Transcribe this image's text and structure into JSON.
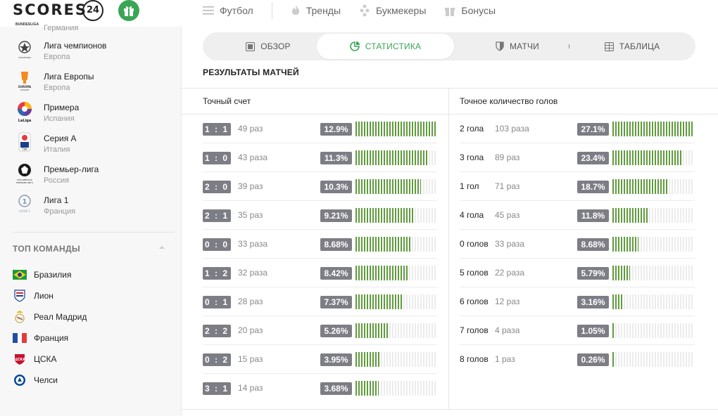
{
  "header": {
    "logo_text": "SCORES",
    "logo_number": "24",
    "nav": [
      {
        "label": "Футбол",
        "icon": "menu-icon"
      },
      {
        "label": "Тренды",
        "icon": "flame-icon"
      },
      {
        "label": "Букмекеры",
        "icon": "bookmaker-icon"
      },
      {
        "label": "Бонусы",
        "icon": "gift-icon"
      }
    ]
  },
  "sidebar": {
    "partial_top_country": "Германия",
    "leagues": [
      {
        "name": "Лига чемпионов",
        "country": "Европа",
        "icon": "champions-league-icon"
      },
      {
        "name": "Лига Европы",
        "country": "Европа",
        "icon": "europa-league-icon"
      },
      {
        "name": "Примера",
        "country": "Испания",
        "icon": "laliga-icon"
      },
      {
        "name": "Серия А",
        "country": "Италия",
        "icon": "serie-a-icon"
      },
      {
        "name": "Премьер-лига",
        "country": "Россия",
        "icon": "russian-premier-league-icon"
      },
      {
        "name": "Лига 1",
        "country": "Франция",
        "icon": "ligue-1-icon"
      }
    ],
    "top_teams_title": "ТОП КОМАНДЫ",
    "teams": [
      {
        "name": "Бразилия",
        "icon": "brazil-flag-icon"
      },
      {
        "name": "Лион",
        "icon": "lyon-crest-icon"
      },
      {
        "name": "Реал Мадрид",
        "icon": "real-madrid-crest-icon"
      },
      {
        "name": "Франция",
        "icon": "france-flag-icon"
      },
      {
        "name": "ЦСКА",
        "icon": "cska-crest-icon"
      },
      {
        "name": "Челси",
        "icon": "chelsea-crest-icon"
      }
    ]
  },
  "tabs": [
    {
      "label": "Обзор",
      "icon": "overview-icon",
      "active": false
    },
    {
      "label": "Статистика",
      "icon": "pie-chart-icon",
      "active": true
    },
    {
      "label": "Матчи",
      "icon": "shield-icon",
      "active": false
    },
    {
      "label": "Таблица",
      "icon": "table-icon",
      "active": false
    }
  ],
  "section_title": "РЕЗУЛЬТАТЫ МАТЧЕЙ",
  "exact_score": {
    "title": "Точный счет",
    "rows": [
      {
        "score": "1 : 1",
        "count": "49 раз",
        "pct": "12.9%",
        "value": 12.9
      },
      {
        "score": "1 : 0",
        "count": "43 раза",
        "pct": "11.3%",
        "value": 11.3
      },
      {
        "score": "2 : 0",
        "count": "39 раз",
        "pct": "10.3%",
        "value": 10.3
      },
      {
        "score": "2 : 1",
        "count": "35 раз",
        "pct": "9.21%",
        "value": 9.21
      },
      {
        "score": "0 : 0",
        "count": "33 раза",
        "pct": "8.68%",
        "value": 8.68
      },
      {
        "score": "1 : 2",
        "count": "32 раза",
        "pct": "8.42%",
        "value": 8.42
      },
      {
        "score": "0 : 1",
        "count": "28 раз",
        "pct": "7.37%",
        "value": 7.37
      },
      {
        "score": "2 : 2",
        "count": "20 раз",
        "pct": "5.26%",
        "value": 5.26
      },
      {
        "score": "0 : 2",
        "count": "15 раз",
        "pct": "3.95%",
        "value": 3.95
      },
      {
        "score": "3 : 1",
        "count": "14 раз",
        "pct": "3.68%",
        "value": 3.68
      }
    ]
  },
  "exact_goals": {
    "title": "Точное количество голов",
    "rows": [
      {
        "label": "2 гола",
        "count": "103 раза",
        "pct": "27.1%",
        "value": 27.1
      },
      {
        "label": "3 гола",
        "count": "89 раз",
        "pct": "23.4%",
        "value": 23.4
      },
      {
        "label": "1 гол",
        "count": "71 раз",
        "pct": "18.7%",
        "value": 18.7
      },
      {
        "label": "4 гола",
        "count": "45 раз",
        "pct": "11.8%",
        "value": 11.8
      },
      {
        "label": "0 голов",
        "count": "33 раза",
        "pct": "8.68%",
        "value": 8.68
      },
      {
        "label": "5 голов",
        "count": "22 раза",
        "pct": "5.79%",
        "value": 5.79
      },
      {
        "label": "6 голов",
        "count": "12 раз",
        "pct": "3.16%",
        "value": 3.16
      },
      {
        "label": "7 голов",
        "count": "4 раза",
        "pct": "1.05%",
        "value": 1.05
      },
      {
        "label": "8 голов",
        "count": "1 раз",
        "pct": "0.26%",
        "value": 0.26
      }
    ]
  },
  "colors": {
    "accent": "#3aa655",
    "bar": "#5f9c3c",
    "badge": "#7d7d86"
  }
}
